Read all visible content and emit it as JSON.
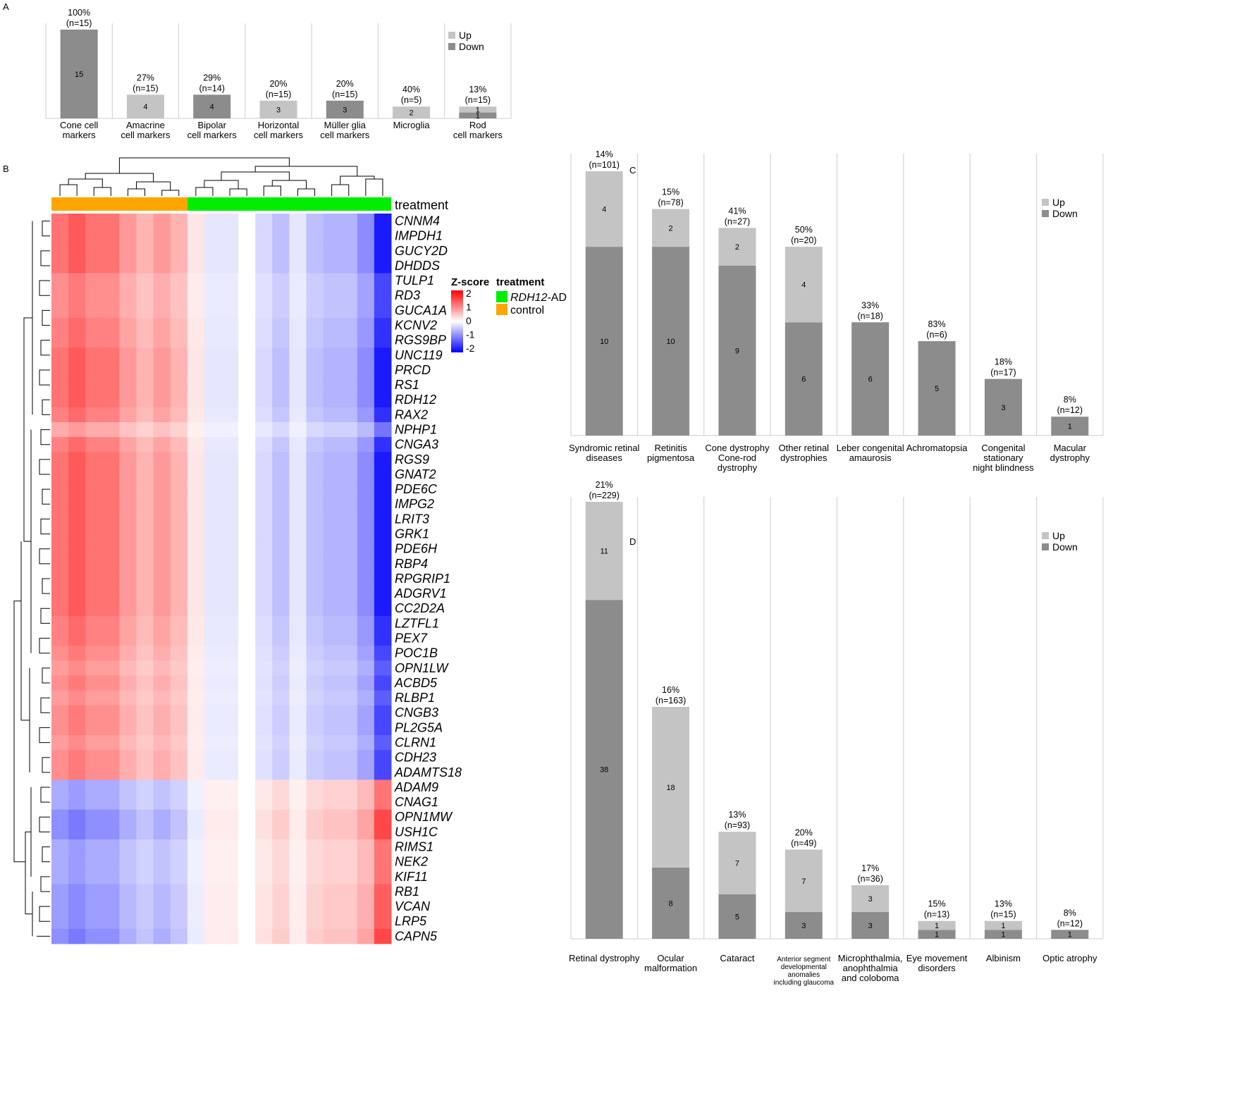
{
  "figure": {
    "panels": [
      "A",
      "B",
      "C",
      "D"
    ]
  },
  "colors": {
    "up": "#c4c4c4",
    "down": "#8c8c8c",
    "divider": "#cccccc",
    "rdh12_ad": "#00ee00",
    "control": "#ffa500",
    "heat_high": "#ff0000",
    "heat_mid": "#ffffff",
    "heat_low": "#0000ff"
  },
  "chart_data": [
    {
      "panel": "A",
      "type": "bar",
      "stacked": true,
      "legend": [
        "Up",
        "Down"
      ],
      "legend_position": "top-right",
      "categories": [
        {
          "label": [
            "Cone cell",
            "markers"
          ],
          "percent": "100%",
          "n": "(n=15)",
          "up": 0,
          "down": 15
        },
        {
          "label": [
            "Amacrine",
            "cell markers"
          ],
          "percent": "27%",
          "n": "(n=15)",
          "up": 4,
          "down": 0
        },
        {
          "label": [
            "Bipolar",
            "cell markers"
          ],
          "percent": "29%",
          "n": "(n=14)",
          "up": 0,
          "down": 4
        },
        {
          "label": [
            "Horizontal",
            "cell markers"
          ],
          "percent": "20%",
          "n": "(n=15)",
          "up": 3,
          "down": 0
        },
        {
          "label": [
            "Müller glia",
            "cell markers"
          ],
          "percent": "20%",
          "n": "(n=15)",
          "up": 0,
          "down": 3
        },
        {
          "label": [
            "Microglia"
          ],
          "percent": "40%",
          "n": "(n=5)",
          "up": 2,
          "down": 0
        },
        {
          "label": [
            "Rod",
            "cell markers"
          ],
          "percent": "13%",
          "n": "(n=15)",
          "up": 1,
          "down": 1
        }
      ],
      "ylim": [
        0,
        15
      ]
    },
    {
      "panel": "B",
      "type": "heatmap",
      "annotation_label": "treatment",
      "legend_title": "Z-score",
      "legend_ticks": [
        "2",
        "1",
        "0",
        "-1",
        "-2"
      ],
      "zlim": [
        -2,
        2
      ],
      "treatment_legend_title": "treatment",
      "treatment_groups": [
        {
          "name_italic": "RDH12",
          "name_rest": "-AD",
          "key": "rdh12_ad"
        },
        {
          "name_italic": "",
          "name_rest": "control",
          "key": "control"
        }
      ],
      "columns": {
        "control": 8,
        "rdh12_ad": 12
      },
      "genes": [
        "CNNM4",
        "IMPDH1",
        "GUCY2D",
        "DHDDS",
        "TULP1",
        "RD3",
        "GUCA1A",
        "KCNV2",
        "RGS9BP",
        "UNC119",
        "PRCD",
        "RS1",
        "RDH12",
        "RAX2",
        "NPHP1",
        "CNGA3",
        "RGS9",
        "GNAT2",
        "PDE6C",
        "IMPG2",
        "LRIT3",
        "GRK1",
        "PDE6H",
        "RBP4",
        "RPGRIP1",
        "ADGRV1",
        "CC2D2A",
        "LZTFL1",
        "PEX7",
        "POC1B",
        "OPN1LW",
        "ACBD5",
        "RLBP1",
        "CNGB3",
        "PL2G5A",
        "CLRN1",
        "CDH23",
        "ADAMTS18",
        "ADAM9",
        "CNAG1",
        "OPN1MW",
        "USH1C",
        "RIMS1",
        "NEK2",
        "KIF11",
        "RB1",
        "VCAN",
        "LRP5",
        "CAPN5"
      ],
      "row_loading": [
        1.0,
        1.0,
        1.0,
        1.0,
        0.8,
        0.8,
        0.8,
        0.9,
        0.9,
        1.0,
        1.0,
        1.0,
        1.0,
        0.9,
        0.6,
        0.9,
        1.0,
        1.0,
        1.0,
        1.0,
        1.0,
        1.0,
        1.0,
        1.0,
        1.0,
        1.0,
        1.0,
        0.9,
        0.9,
        0.8,
        0.7,
        0.8,
        0.7,
        0.8,
        0.8,
        0.7,
        0.8,
        0.8,
        -0.6,
        -0.6,
        -0.8,
        -0.8,
        -0.6,
        -0.6,
        -0.6,
        -0.7,
        -0.7,
        -0.7,
        -0.8
      ],
      "column_score": [
        1.1,
        1.3,
        1.1,
        1.1,
        0.8,
        0.6,
        0.8,
        0.6,
        0.2,
        -0.2,
        -0.2,
        0.0,
        -0.3,
        -0.5,
        -0.2,
        -0.5,
        -0.6,
        -0.6,
        -0.9,
        -1.8
      ]
    },
    {
      "panel": "C",
      "type": "bar",
      "stacked": true,
      "legend": [
        "Up",
        "Down"
      ],
      "legend_position": "top-right",
      "categories": [
        {
          "label": [
            "Syndromic retinal",
            "diseases"
          ],
          "percent": "14%",
          "n": "(n=101)",
          "up": 4,
          "down": 10
        },
        {
          "label": [
            "Retinitis",
            "pigmentosa"
          ],
          "percent": "15%",
          "n": "(n=78)",
          "up": 2,
          "down": 10
        },
        {
          "label": [
            "Cone dystrophy",
            "Cone-rod",
            "dystrophy"
          ],
          "percent": "41%",
          "n": "(n=27)",
          "up": 2,
          "down": 9
        },
        {
          "label": [
            "Other retinal",
            "dystrophies"
          ],
          "percent": "50%",
          "n": "(n=20)",
          "up": 4,
          "down": 6
        },
        {
          "label": [
            "Leber congenital",
            "amaurosis"
          ],
          "percent": "33%",
          "n": "(n=18)",
          "up": 0,
          "down": 6
        },
        {
          "label": [
            "Achromatopsia"
          ],
          "percent": "83%",
          "n": "(n=6)",
          "up": 0,
          "down": 5
        },
        {
          "label": [
            "Congenital",
            "stationary",
            "night blindness"
          ],
          "percent": "18%",
          "n": "(n=17)",
          "up": 0,
          "down": 3
        },
        {
          "label": [
            "Macular",
            "dystrophy"
          ],
          "percent": "8%",
          "n": "(n=12)",
          "up": 0,
          "down": 1
        }
      ],
      "ylim": [
        0,
        14
      ]
    },
    {
      "panel": "D",
      "type": "bar",
      "stacked": true,
      "legend": [
        "Up",
        "Down"
      ],
      "legend_position": "top-right",
      "categories": [
        {
          "label": [
            "Retinal dystrophy"
          ],
          "percent": "21%",
          "n": "(n=229)",
          "up": 11,
          "down": 38
        },
        {
          "label": [
            "Ocular",
            "malformation"
          ],
          "percent": "16%",
          "n": "(n=163)",
          "up": 18,
          "down": 8
        },
        {
          "label": [
            "Cataract"
          ],
          "percent": "13%",
          "n": "(n=93)",
          "up": 7,
          "down": 5
        },
        {
          "label": [
            "Anterior segment",
            "developmental",
            "anomalies",
            "including glaucoma"
          ],
          "percent": "20%",
          "n": "(n=49)",
          "up": 7,
          "down": 3,
          "small": true
        },
        {
          "label": [
            "Microphthalmia,",
            "anophthalmia",
            "and coloboma"
          ],
          "percent": "17%",
          "n": "(n=36)",
          "up": 3,
          "down": 3
        },
        {
          "label": [
            "Eye movement",
            "disorders"
          ],
          "percent": "15%",
          "n": "(n=13)",
          "up": 1,
          "down": 1
        },
        {
          "label": [
            "Albinism"
          ],
          "percent": "13%",
          "n": "(n=15)",
          "up": 1,
          "down": 1
        },
        {
          "label": [
            "Optic atrophy"
          ],
          "percent": "8%",
          "n": "(n=12)",
          "up": 0,
          "down": 1
        }
      ],
      "ylim": [
        0,
        49
      ]
    }
  ]
}
